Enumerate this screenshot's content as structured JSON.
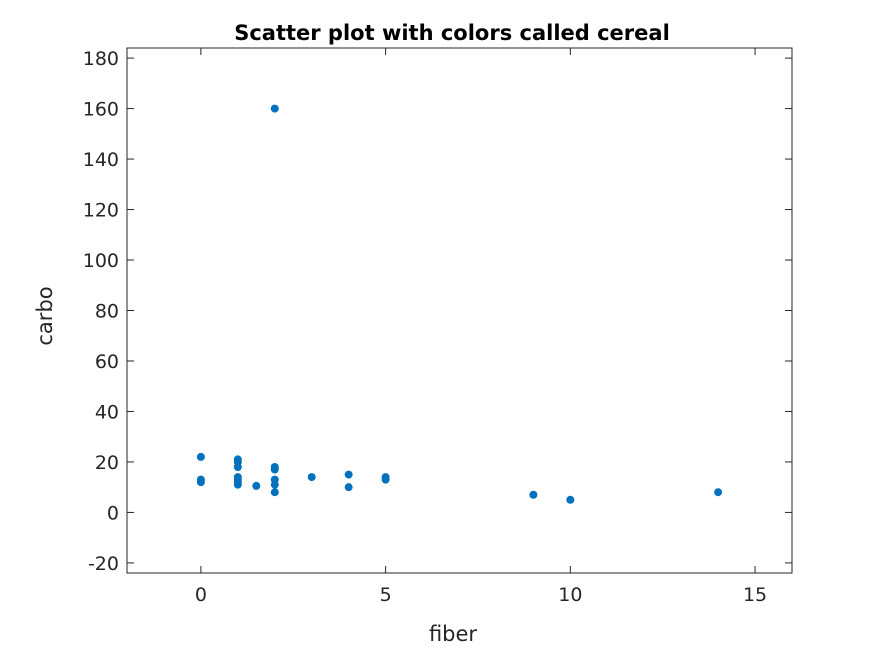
{
  "chart_data": {
    "type": "scatter",
    "title": "Scatter plot with colors called cereal",
    "xlabel": "fiber",
    "ylabel": "carbo",
    "xlim": [
      -2,
      16
    ],
    "ylim": [
      -24,
      184
    ],
    "xticks": [
      0,
      5,
      10,
      15
    ],
    "yticks": [
      -20,
      0,
      20,
      40,
      60,
      80,
      100,
      120,
      140,
      160,
      180
    ],
    "grid": false,
    "marker_color": "#0072BD",
    "points": [
      {
        "x": 0,
        "y": 22
      },
      {
        "x": 0,
        "y": 13
      },
      {
        "x": 0,
        "y": 12
      },
      {
        "x": 1,
        "y": 21
      },
      {
        "x": 1,
        "y": 20
      },
      {
        "x": 1,
        "y": 18
      },
      {
        "x": 1,
        "y": 14
      },
      {
        "x": 1,
        "y": 13
      },
      {
        "x": 1,
        "y": 12
      },
      {
        "x": 1,
        "y": 11
      },
      {
        "x": 1.5,
        "y": 10.5
      },
      {
        "x": 2,
        "y": 160
      },
      {
        "x": 2,
        "y": 18
      },
      {
        "x": 2,
        "y": 17
      },
      {
        "x": 2,
        "y": 13
      },
      {
        "x": 2,
        "y": 11
      },
      {
        "x": 2,
        "y": 8
      },
      {
        "x": 3,
        "y": 14
      },
      {
        "x": 4,
        "y": 15
      },
      {
        "x": 4,
        "y": 10
      },
      {
        "x": 5,
        "y": 14
      },
      {
        "x": 5,
        "y": 13
      },
      {
        "x": 9,
        "y": 7
      },
      {
        "x": 10,
        "y": 5
      },
      {
        "x": 14,
        "y": 8
      }
    ]
  }
}
